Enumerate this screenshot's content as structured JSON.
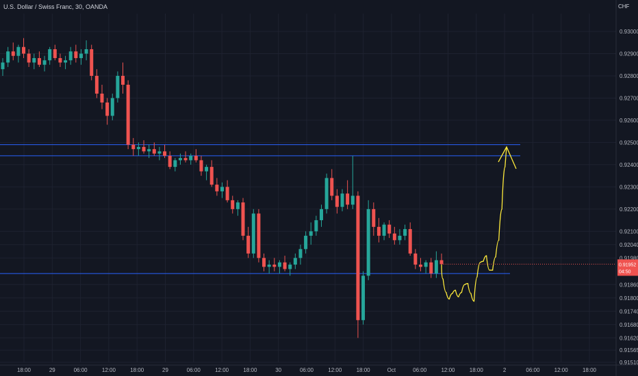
{
  "header": {
    "title": "U.S. Dollar / Swiss Franc, 30, OANDA",
    "currency": "CHF"
  },
  "colors": {
    "background": "#131722",
    "up": "#26a69a",
    "down": "#ef5350",
    "level_line": "#2962ff",
    "annotation": "#ffeb3b",
    "grid": "#1e2230"
  },
  "chart_data": {
    "type": "candlestick",
    "title": "U.S. Dollar / Swiss Franc, 30, OANDA",
    "ylim": [
      0.9151,
      0.9308
    ],
    "y_ticks": [
      "0.93000",
      "0.92900",
      "0.92800",
      "0.92700",
      "0.92600",
      "0.92500",
      "0.92400",
      "0.92300",
      "0.92200",
      "0.92100",
      "0.92040",
      "0.91980",
      "0.91860",
      "0.91800",
      "0.91740",
      "0.91680",
      "0.91620",
      "0.91565",
      "0.91510"
    ],
    "x_ticks": [
      "18:00",
      "29",
      "06:00",
      "12:00",
      "18:00",
      "29",
      "06:00",
      "12:00",
      "18:00",
      "30",
      "06:00",
      "12:00",
      "18:00",
      "Oct",
      "06:00",
      "12:00",
      "18:00",
      "2",
      "06:00",
      "12:00",
      "18:00"
    ],
    "price_tag": "0.91952",
    "timer_tag": "04:50",
    "price_tag_prefix": "0",
    "levels": [
      0.9249,
      0.9244,
      0.9191
    ],
    "candles": [
      [
        0.9283,
        0.9288,
        0.928,
        0.9286
      ],
      [
        0.9286,
        0.9293,
        0.9284,
        0.9291
      ],
      [
        0.9291,
        0.9295,
        0.9287,
        0.9289
      ],
      [
        0.9289,
        0.9294,
        0.9286,
        0.9293
      ],
      [
        0.9293,
        0.9297,
        0.9288,
        0.929
      ],
      [
        0.929,
        0.9292,
        0.9284,
        0.9286
      ],
      [
        0.9286,
        0.929,
        0.9283,
        0.9288
      ],
      [
        0.9288,
        0.9291,
        0.9284,
        0.9285
      ],
      [
        0.9285,
        0.9289,
        0.9282,
        0.9287
      ],
      [
        0.9287,
        0.9293,
        0.9285,
        0.9292
      ],
      [
        0.9292,
        0.9294,
        0.9287,
        0.9288
      ],
      [
        0.9288,
        0.929,
        0.9284,
        0.9286
      ],
      [
        0.9286,
        0.9289,
        0.9283,
        0.9287
      ],
      [
        0.9287,
        0.9293,
        0.9285,
        0.9291
      ],
      [
        0.9291,
        0.9294,
        0.9286,
        0.9288
      ],
      [
        0.9288,
        0.9292,
        0.9285,
        0.929
      ],
      [
        0.929,
        0.9296,
        0.9287,
        0.9292
      ],
      [
        0.9292,
        0.9294,
        0.9278,
        0.928
      ],
      [
        0.928,
        0.9283,
        0.927,
        0.9272
      ],
      [
        0.9272,
        0.9276,
        0.9265,
        0.9268
      ],
      [
        0.9268,
        0.927,
        0.9258,
        0.9262
      ],
      [
        0.9262,
        0.9272,
        0.926,
        0.927
      ],
      [
        0.927,
        0.9282,
        0.9268,
        0.928
      ],
      [
        0.928,
        0.9286,
        0.9272,
        0.9276
      ],
      [
        0.9276,
        0.9278,
        0.9247,
        0.9249
      ],
      [
        0.9249,
        0.9252,
        0.9244,
        0.9247
      ],
      [
        0.9247,
        0.925,
        0.9244,
        0.9248
      ],
      [
        0.9248,
        0.9251,
        0.9245,
        0.9246
      ],
      [
        0.9246,
        0.9249,
        0.9243,
        0.9247
      ],
      [
        0.9247,
        0.925,
        0.9244,
        0.9245
      ],
      [
        0.9245,
        0.9248,
        0.9242,
        0.9246
      ],
      [
        0.9246,
        0.9249,
        0.9243,
        0.9244
      ],
      [
        0.9244,
        0.9246,
        0.9238,
        0.9239
      ],
      [
        0.9239,
        0.9243,
        0.9237,
        0.9242
      ],
      [
        0.9242,
        0.9245,
        0.924,
        0.9243
      ],
      [
        0.9243,
        0.9246,
        0.9241,
        0.9242
      ],
      [
        0.9242,
        0.9245,
        0.924,
        0.9244
      ],
      [
        0.9244,
        0.9247,
        0.9241,
        0.9242
      ],
      [
        0.9242,
        0.9244,
        0.9235,
        0.9237
      ],
      [
        0.9237,
        0.924,
        0.9233,
        0.9239
      ],
      [
        0.9239,
        0.9242,
        0.923,
        0.9231
      ],
      [
        0.9231,
        0.9234,
        0.9226,
        0.9228
      ],
      [
        0.9228,
        0.9232,
        0.9225,
        0.923
      ],
      [
        0.923,
        0.9233,
        0.9223,
        0.9224
      ],
      [
        0.9224,
        0.9226,
        0.9218,
        0.922
      ],
      [
        0.922,
        0.9224,
        0.9217,
        0.9223
      ],
      [
        0.9223,
        0.9225,
        0.9206,
        0.9208
      ],
      [
        0.9208,
        0.9212,
        0.9198,
        0.92
      ],
      [
        0.92,
        0.922,
        0.9198,
        0.9218
      ],
      [
        0.9218,
        0.922,
        0.9196,
        0.9198
      ],
      [
        0.9198,
        0.92,
        0.9192,
        0.9194
      ],
      [
        0.9194,
        0.9197,
        0.9191,
        0.9195
      ],
      [
        0.9195,
        0.9198,
        0.9192,
        0.9194
      ],
      [
        0.9194,
        0.9197,
        0.9191,
        0.9196
      ],
      [
        0.9196,
        0.9199,
        0.9192,
        0.9193
      ],
      [
        0.9193,
        0.9196,
        0.919,
        0.9195
      ],
      [
        0.9195,
        0.92,
        0.9193,
        0.9198
      ],
      [
        0.9198,
        0.9204,
        0.9195,
        0.9202
      ],
      [
        0.9202,
        0.921,
        0.92,
        0.9208
      ],
      [
        0.9208,
        0.9214,
        0.9204,
        0.921
      ],
      [
        0.921,
        0.9217,
        0.9208,
        0.9215
      ],
      [
        0.9215,
        0.9222,
        0.9212,
        0.922
      ],
      [
        0.922,
        0.9236,
        0.9218,
        0.9234
      ],
      [
        0.9234,
        0.9238,
        0.9224,
        0.9226
      ],
      [
        0.9226,
        0.9229,
        0.9218,
        0.9221
      ],
      [
        0.9221,
        0.9229,
        0.9219,
        0.9227
      ],
      [
        0.9227,
        0.9233,
        0.922,
        0.9222
      ],
      [
        0.9222,
        0.9244,
        0.922,
        0.9226
      ],
      [
        0.9226,
        0.9228,
        0.9162,
        0.917
      ],
      [
        0.917,
        0.9192,
        0.9168,
        0.919
      ],
      [
        0.919,
        0.9224,
        0.9188,
        0.922
      ],
      [
        0.922,
        0.9223,
        0.9208,
        0.9212
      ],
      [
        0.9212,
        0.9216,
        0.9205,
        0.9208
      ],
      [
        0.9208,
        0.9214,
        0.9206,
        0.9213
      ],
      [
        0.9213,
        0.9215,
        0.9207,
        0.9209
      ],
      [
        0.9209,
        0.9212,
        0.9204,
        0.9206
      ],
      [
        0.9206,
        0.9211,
        0.9204,
        0.9208
      ],
      [
        0.9208,
        0.9213,
        0.9206,
        0.9211
      ],
      [
        0.9211,
        0.9214,
        0.9199,
        0.92
      ],
      [
        0.92,
        0.9202,
        0.9193,
        0.9195
      ],
      [
        0.9195,
        0.9198,
        0.9192,
        0.9194
      ],
      [
        0.9194,
        0.9197,
        0.9191,
        0.9196
      ],
      [
        0.9196,
        0.9198,
        0.9189,
        0.9191
      ],
      [
        0.9191,
        0.9201,
        0.9189,
        0.9197
      ],
      [
        0.9197,
        0.92,
        0.9192,
        0.91952
      ]
    ],
    "annotations": [
      {
        "type": "freehand-arrow",
        "color": "yellow",
        "points": [
          [
            0.9195,
            0.9182
          ],
          [
            0.9183,
            0.9176
          ],
          [
            0.9188,
            0.9179
          ],
          [
            0.9182,
            0.9183
          ],
          [
            0.9189,
            0.9184
          ],
          [
            0.918,
            0.9177
          ],
          [
            0.9202,
            0.919
          ],
          [
            0.9203,
            0.9195
          ],
          [
            0.919,
            0.9195
          ],
          [
            0.9202,
            0.921
          ],
          [
            0.923,
            0.9248
          ]
        ]
      }
    ]
  }
}
